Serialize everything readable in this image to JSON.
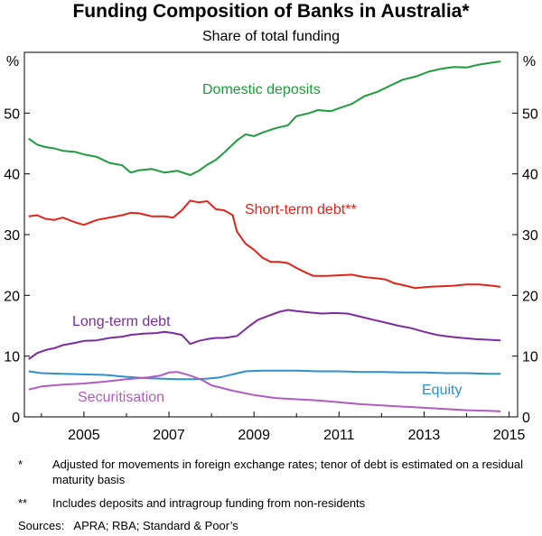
{
  "chart_data": {
    "type": "line",
    "title": "Funding Composition of Banks in Australia*",
    "subtitle": "Share of total funding",
    "y_unit_label": "%",
    "ylim": [
      0,
      60
    ],
    "y_ticks": [
      0,
      10,
      20,
      30,
      40,
      50
    ],
    "xlim": [
      2003.6,
      2015.2
    ],
    "x_ticks": [
      2005,
      2007,
      2009,
      2011,
      2013,
      2015
    ],
    "grid": false,
    "series": [
      {
        "name": "Domestic deposits",
        "color": "#1e9c3c",
        "x": [
          2003.7,
          2003.9,
          2004.1,
          2004.3,
          2004.5,
          2004.8,
          2005.0,
          2005.3,
          2005.6,
          2005.9,
          2006.1,
          2006.3,
          2006.6,
          2006.9,
          2007.2,
          2007.5,
          2007.7,
          2007.9,
          2008.1,
          2008.3,
          2008.6,
          2008.8,
          2009.0,
          2009.2,
          2009.5,
          2009.8,
          2010.0,
          2010.3,
          2010.5,
          2010.8,
          2011.0,
          2011.3,
          2011.6,
          2011.9,
          2012.2,
          2012.5,
          2012.8,
          2013.1,
          2013.4,
          2013.7,
          2014.0,
          2014.3,
          2014.6,
          2014.8
        ],
        "values": [
          45.8,
          44.8,
          44.4,
          44.2,
          43.8,
          43.6,
          43.2,
          42.8,
          41.8,
          41.4,
          40.2,
          40.6,
          40.8,
          40.2,
          40.5,
          39.8,
          40.5,
          41.5,
          42.3,
          43.5,
          45.5,
          46.5,
          46.2,
          46.8,
          47.5,
          48.0,
          49.5,
          50.0,
          50.5,
          50.3,
          50.8,
          51.5,
          52.8,
          53.5,
          54.5,
          55.5,
          56.0,
          56.8,
          57.3,
          57.6,
          57.5,
          58.0,
          58.3,
          58.5
        ]
      },
      {
        "name": "Short-term debt**",
        "color": "#e2231a",
        "x": [
          2003.7,
          2003.9,
          2004.1,
          2004.3,
          2004.5,
          2004.8,
          2005.0,
          2005.3,
          2005.6,
          2005.9,
          2006.1,
          2006.3,
          2006.6,
          2006.9,
          2007.1,
          2007.3,
          2007.5,
          2007.7,
          2007.9,
          2008.1,
          2008.3,
          2008.5,
          2008.6,
          2008.8,
          2009.0,
          2009.2,
          2009.4,
          2009.6,
          2009.8,
          2010.0,
          2010.2,
          2010.4,
          2010.7,
          2011.0,
          2011.3,
          2011.6,
          2011.9,
          2012.1,
          2012.3,
          2012.5,
          2012.8,
          2013.1,
          2013.4,
          2013.7,
          2014.0,
          2014.3,
          2014.6,
          2014.8
        ],
        "values": [
          33.0,
          33.2,
          32.6,
          32.4,
          32.8,
          32.0,
          31.6,
          32.4,
          32.8,
          33.2,
          33.6,
          33.5,
          33.0,
          33.0,
          32.8,
          34.0,
          35.6,
          35.3,
          35.5,
          34.2,
          34.0,
          33.2,
          30.5,
          28.5,
          27.5,
          26.2,
          25.5,
          25.5,
          25.3,
          24.5,
          23.8,
          23.2,
          23.2,
          23.3,
          23.4,
          23.0,
          22.8,
          22.6,
          22.0,
          21.7,
          21.2,
          21.4,
          21.5,
          21.6,
          21.8,
          21.8,
          21.6,
          21.4
        ]
      },
      {
        "name": "Long-term debt",
        "color": "#7a2d9e",
        "x": [
          2003.7,
          2003.9,
          2004.1,
          2004.3,
          2004.5,
          2004.8,
          2005.0,
          2005.3,
          2005.6,
          2005.9,
          2006.1,
          2006.4,
          2006.7,
          2006.9,
          2007.1,
          2007.3,
          2007.5,
          2007.7,
          2007.9,
          2008.1,
          2008.3,
          2008.6,
          2008.9,
          2009.1,
          2009.4,
          2009.6,
          2009.8,
          2010.0,
          2010.3,
          2010.6,
          2010.9,
          2011.2,
          2011.5,
          2011.8,
          2012.1,
          2012.4,
          2012.7,
          2013.0,
          2013.3,
          2013.6,
          2013.9,
          2014.2,
          2014.5,
          2014.8
        ],
        "values": [
          9.5,
          10.5,
          11.0,
          11.3,
          11.8,
          12.2,
          12.5,
          12.6,
          13.0,
          13.2,
          13.5,
          13.7,
          13.8,
          14.0,
          13.8,
          13.5,
          12.0,
          12.5,
          12.8,
          13.0,
          13.0,
          13.3,
          15.0,
          16.0,
          16.8,
          17.3,
          17.6,
          17.4,
          17.2,
          17.0,
          17.1,
          17.0,
          16.5,
          16.0,
          15.5,
          15.0,
          14.6,
          14.0,
          13.5,
          13.2,
          13.0,
          12.8,
          12.7,
          12.6
        ]
      },
      {
        "name": "Equity",
        "color": "#2e8fd1",
        "x": [
          2003.7,
          2004.0,
          2004.5,
          2005.0,
          2005.5,
          2006.0,
          2006.4,
          2006.8,
          2007.2,
          2007.6,
          2007.9,
          2008.2,
          2008.5,
          2008.8,
          2009.2,
          2009.6,
          2010.0,
          2010.5,
          2011.0,
          2011.5,
          2012.0,
          2012.5,
          2013.0,
          2013.5,
          2014.0,
          2014.5,
          2014.8
        ],
        "values": [
          7.5,
          7.2,
          7.1,
          7.0,
          6.9,
          6.6,
          6.4,
          6.3,
          6.2,
          6.2,
          6.3,
          6.5,
          7.0,
          7.5,
          7.6,
          7.6,
          7.6,
          7.5,
          7.5,
          7.4,
          7.4,
          7.3,
          7.3,
          7.2,
          7.2,
          7.1,
          7.1
        ]
      },
      {
        "name": "Securitisation",
        "color": "#b05cc0",
        "x": [
          2003.7,
          2004.0,
          2004.5,
          2005.0,
          2005.5,
          2006.0,
          2006.5,
          2006.8,
          2007.0,
          2007.2,
          2007.5,
          2007.8,
          2008.0,
          2008.5,
          2009.0,
          2009.5,
          2010.0,
          2010.5,
          2011.0,
          2011.5,
          2012.0,
          2012.5,
          2013.0,
          2013.5,
          2014.0,
          2014.5,
          2014.8
        ],
        "values": [
          4.5,
          5.0,
          5.3,
          5.5,
          5.8,
          6.2,
          6.5,
          6.8,
          7.3,
          7.4,
          6.8,
          6.0,
          5.2,
          4.3,
          3.6,
          3.1,
          2.9,
          2.7,
          2.4,
          2.1,
          1.9,
          1.7,
          1.5,
          1.3,
          1.1,
          1.0,
          0.9
        ]
      }
    ]
  },
  "notes": [
    {
      "mark": "*",
      "text": "Adjusted for movements in foreign exchange rates; tenor of debt is estimated on a residual maturity basis"
    },
    {
      "mark": "**",
      "text": "Includes deposits and intragroup funding from non-residents"
    }
  ],
  "sources": "Sources:   APRA; RBA; Standard & Poor’s"
}
